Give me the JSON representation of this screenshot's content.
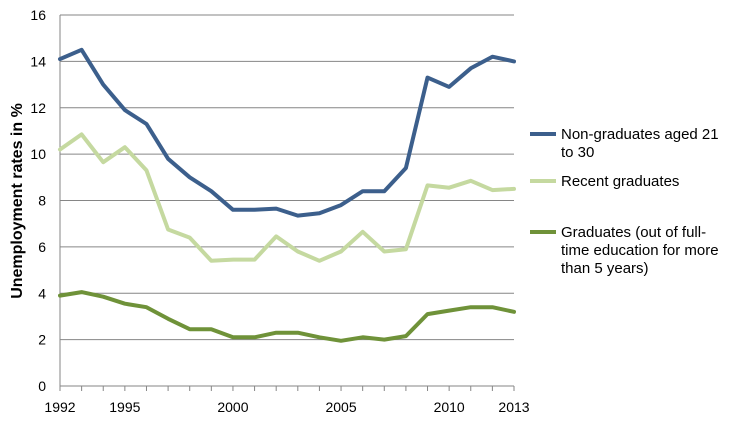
{
  "chart_data": {
    "type": "line",
    "title": "",
    "xlabel": "",
    "ylabel": "Unemployment rates in %",
    "ylim": [
      0,
      16
    ],
    "y_ticks": [
      "0",
      "2",
      "4",
      "6",
      "8",
      "10",
      "12",
      "14",
      "16"
    ],
    "x_ticks": [
      "1992",
      "1995",
      "2000",
      "2005",
      "2010",
      "2013"
    ],
    "x": [
      1992,
      1993,
      1994,
      1995,
      1996,
      1997,
      1998,
      1999,
      2000,
      2001,
      2002,
      2003,
      2004,
      2005,
      2006,
      2007,
      2008,
      2009,
      2010,
      2011,
      2012,
      2013
    ],
    "grid": true,
    "legend_position": "right",
    "series": [
      {
        "name": "Non-graduates aged 21 to 30",
        "legend_lines": [
          "Non-graduates aged 21",
          "to 30"
        ],
        "color": "#3c5f8c",
        "values": [
          14.1,
          14.5,
          13.0,
          11.9,
          11.3,
          9.8,
          9.0,
          8.4,
          7.6,
          7.6,
          7.65,
          7.35,
          7.45,
          7.8,
          8.4,
          8.4,
          9.4,
          13.3,
          12.9,
          13.7,
          14.2,
          14.0
        ]
      },
      {
        "name": "Recent graduates",
        "legend_lines": [
          "Recent graduates"
        ],
        "color": "#c5d9a0",
        "values": [
          10.2,
          10.85,
          9.65,
          10.3,
          9.3,
          6.75,
          6.4,
          5.4,
          5.45,
          5.45,
          6.45,
          5.8,
          5.4,
          5.8,
          6.65,
          5.8,
          5.9,
          8.65,
          8.55,
          8.85,
          8.45,
          8.5
        ]
      },
      {
        "name": "Graduates (out of full-time education for more than 5 years)",
        "legend_lines": [
          "Graduates (out of full-",
          "time education for more",
          "than 5 years)"
        ],
        "color": "#6f9239",
        "values": [
          3.9,
          4.05,
          3.85,
          3.55,
          3.4,
          2.9,
          2.45,
          2.45,
          2.1,
          2.1,
          2.3,
          2.3,
          2.1,
          1.95,
          2.1,
          2.0,
          2.15,
          3.1,
          3.25,
          3.4,
          3.4,
          3.2
        ]
      }
    ]
  }
}
